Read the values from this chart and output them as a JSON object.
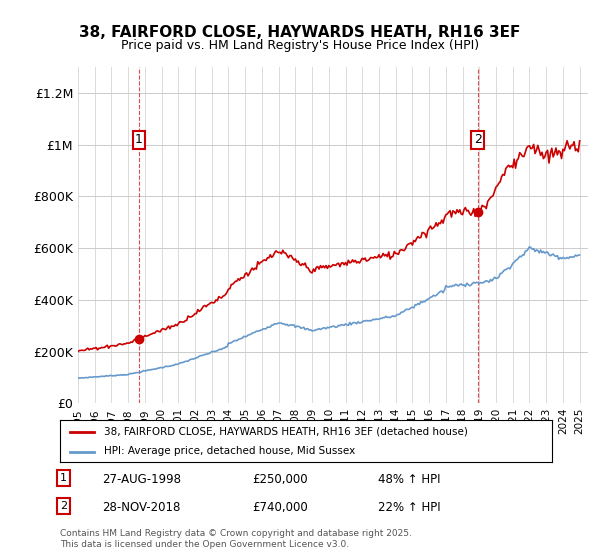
{
  "title_line1": "38, FAIRFORD CLOSE, HAYWARDS HEATH, RH16 3EF",
  "title_line2": "Price paid vs. HM Land Registry's House Price Index (HPI)",
  "ylabel_ticks": [
    "£0",
    "£200K",
    "£400K",
    "£600K",
    "£800K",
    "£1M",
    "£1.2M"
  ],
  "ytick_vals": [
    0,
    200000,
    400000,
    600000,
    800000,
    1000000,
    1200000
  ],
  "ylim": [
    0,
    1300000
  ],
  "sale1_year": 1998.65,
  "sale1_price": 250000,
  "sale2_year": 2018.9,
  "sale2_price": 740000,
  "red_color": "#cc0000",
  "blue_color": "#6699cc",
  "grid_color": "#cccccc",
  "bg_color": "#ffffff",
  "legend_line1": "38, FAIRFORD CLOSE, HAYWARDS HEATH, RH16 3EF (detached house)",
  "legend_line2": "HPI: Average price, detached house, Mid Sussex",
  "annotation1_date": "27-AUG-1998",
  "annotation1_price": "£250,000",
  "annotation1_hpi": "48% ↑ HPI",
  "annotation2_date": "28-NOV-2018",
  "annotation2_price": "£740,000",
  "annotation2_hpi": "22% ↑ HPI",
  "footer": "Contains HM Land Registry data © Crown copyright and database right 2025.\nThis data is licensed under the Open Government Licence v3.0."
}
